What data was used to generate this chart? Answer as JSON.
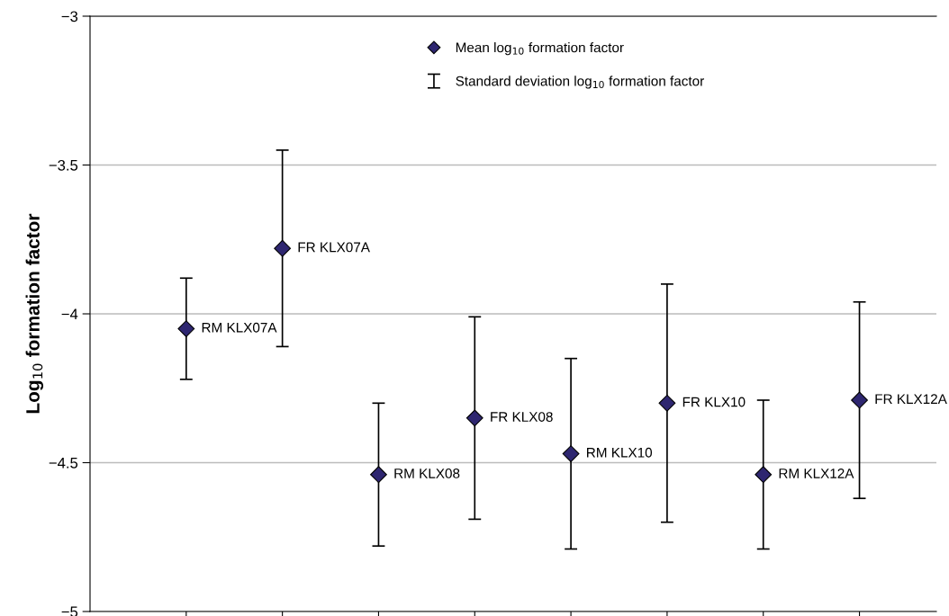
{
  "chart_data": {
    "type": "scatter",
    "ylabel": "Log$_{10}$ formation factor",
    "categories": [
      null,
      null,
      null,
      null,
      null,
      null,
      null,
      null
    ],
    "series": [
      {
        "name": "Mean log$_{10}$ formation factor",
        "color": "#2e2670",
        "values": [
          -4.05,
          -3.78,
          -4.54,
          -4.35,
          -4.47,
          -4.3,
          -4.54,
          -4.29
        ],
        "errors": [
          0.17,
          0.33,
          0.24,
          0.34,
          0.32,
          0.4,
          0.25,
          0.33
        ],
        "value_labels": [
          "RM KLX07A",
          "FR KLX07A",
          "RM KLX08",
          "FR KLX08",
          "RM KLX10",
          "FR KLX10",
          "RM KLX12A",
          "FR KLX12A"
        ]
      }
    ],
    "annotations": [
      "Standard deviation log$_{10}$ formation factor"
    ],
    "ylim": [
      -5,
      -3
    ],
    "yticks": [
      {
        "value": -5,
        "label": "−5"
      },
      {
        "value": -4.5,
        "label": "−4.5"
      },
      {
        "value": -4,
        "label": "−4"
      },
      {
        "value": -3.5,
        "label": "−3.5"
      },
      {
        "value": -3,
        "label": "−3"
      }
    ],
    "grid": "y",
    "legend": "top",
    "marker": "diamond"
  }
}
